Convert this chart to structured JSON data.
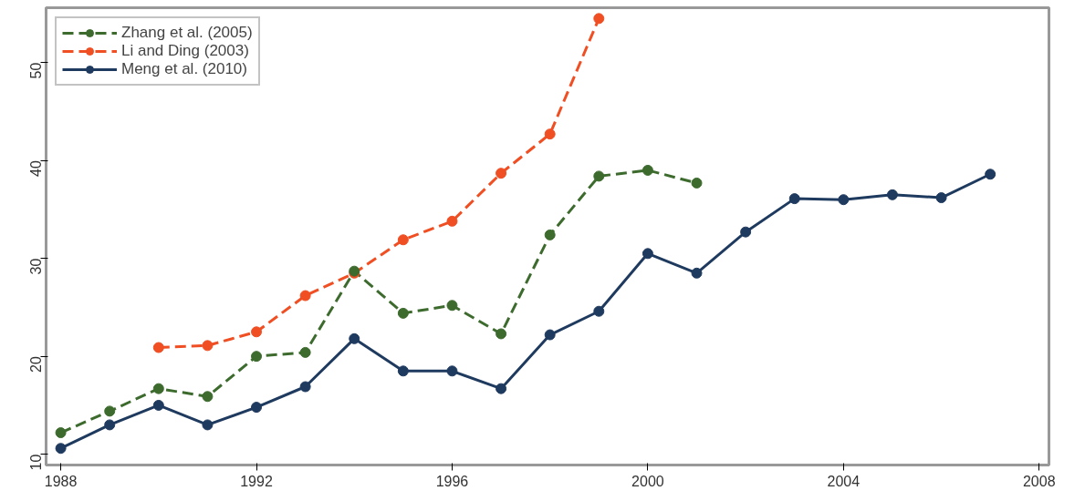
{
  "chart_data": {
    "type": "line",
    "series": [
      {
        "name": "Zhang et al. (2005)",
        "color": "#3d6b2e",
        "line_style": "dashed",
        "x": [
          1988,
          1989,
          1990,
          1991,
          1992,
          1993,
          1994,
          1995,
          1996,
          1997,
          1998,
          1999,
          2000,
          2001
        ],
        "values": [
          12.2,
          14.4,
          16.7,
          15.9,
          20.0,
          20.4,
          28.7,
          24.4,
          25.2,
          22.3,
          32.4,
          38.4,
          39.0,
          37.7
        ]
      },
      {
        "name": "Li and Ding (2003)",
        "color": "#f04e23",
        "line_style": "dashed",
        "x": [
          1990,
          1991,
          1992,
          1993,
          1994,
          1995,
          1996,
          1997,
          1998,
          1999
        ],
        "values": [
          20.9,
          21.1,
          22.5,
          26.2,
          28.5,
          31.9,
          33.8,
          38.7,
          42.7,
          54.5
        ]
      },
      {
        "name": "Meng et al. (2010)",
        "color": "#1f3a5f",
        "line_style": "solid",
        "x": [
          1988,
          1989,
          1990,
          1991,
          1992,
          1993,
          1994,
          1995,
          1996,
          1997,
          1998,
          1999,
          2000,
          2001,
          2002,
          2003,
          2004,
          2005,
          2006,
          2007
        ],
        "values": [
          10.6,
          13.0,
          15.0,
          13.0,
          14.8,
          16.9,
          21.8,
          18.5,
          18.5,
          16.7,
          22.2,
          24.6,
          30.5,
          28.5,
          32.7,
          36.1,
          36.0,
          36.5,
          36.2,
          38.6
        ]
      }
    ],
    "xlim": [
      1987.7,
      2008.2
    ],
    "xticks": [
      1988,
      1992,
      1996,
      2000,
      2004,
      2008
    ],
    "ylim": [
      8.9,
      55.6
    ],
    "yticks": [
      10,
      20,
      30,
      40,
      50
    ],
    "grid": false,
    "legend": "top left",
    "marker": "circle"
  }
}
